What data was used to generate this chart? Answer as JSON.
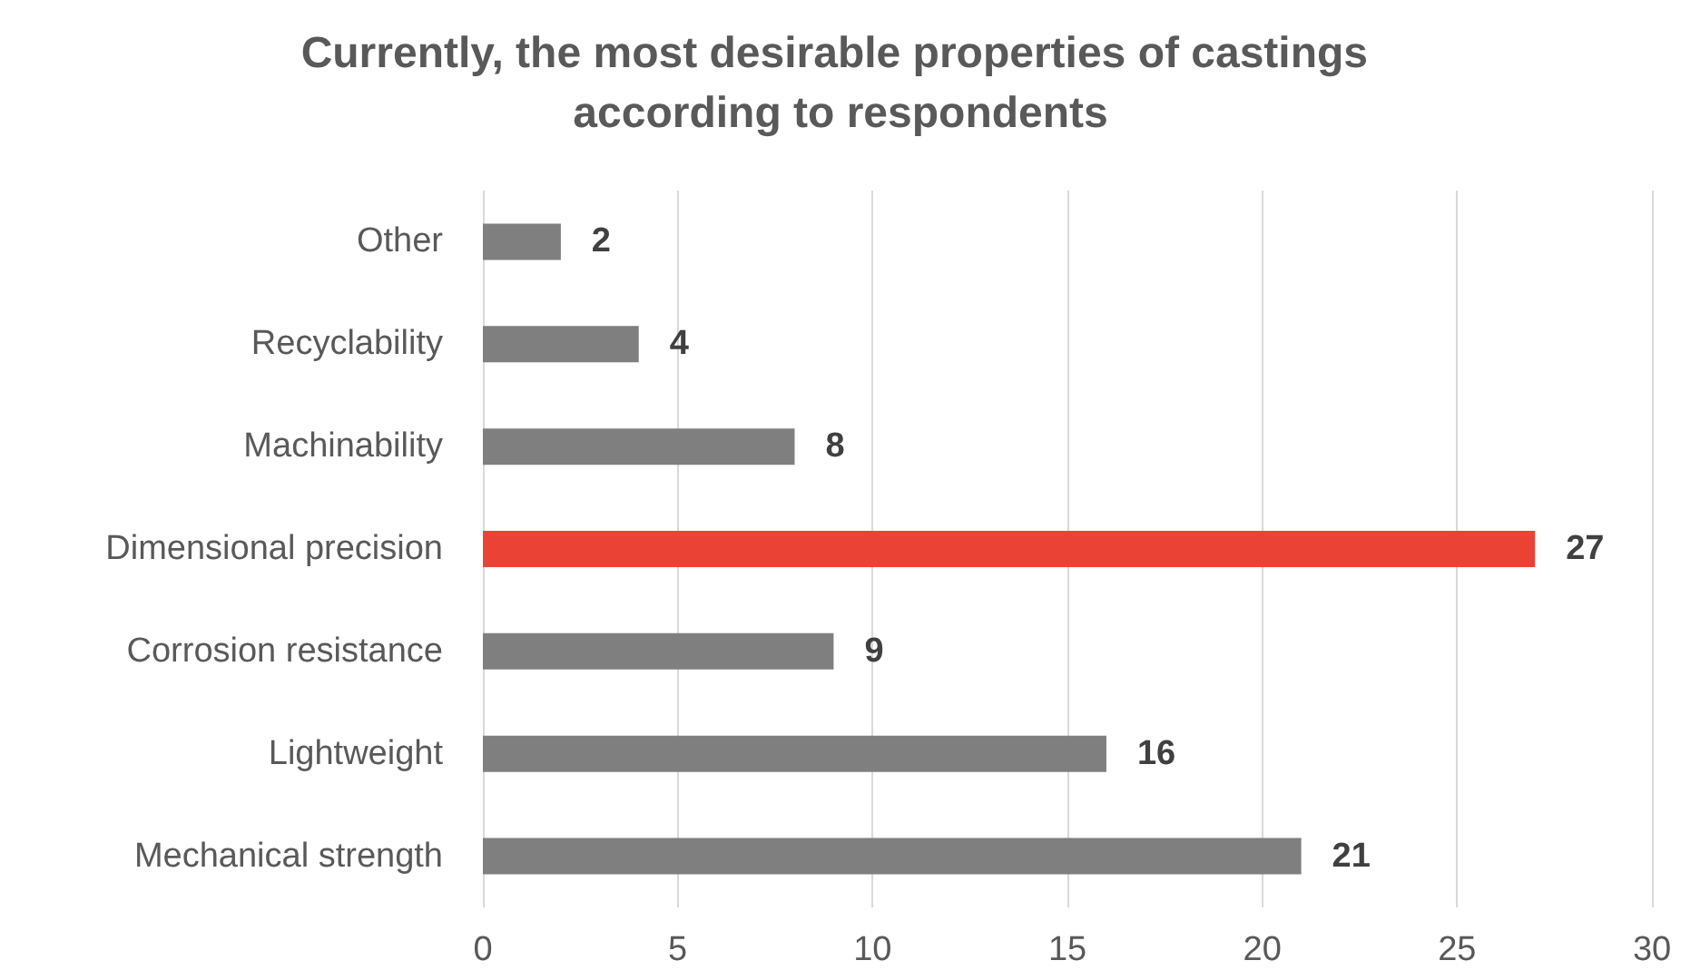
{
  "chart_data": {
    "type": "bar",
    "title": "Currently, the most desirable properties of castings according to respondents",
    "orientation": "horizontal",
    "categories": [
      "Other",
      "Recyclability",
      "Machinability",
      "Dimensional precision",
      "Corrosion resistance",
      "Lightweight",
      "Mechanical strength"
    ],
    "values": [
      2,
      4,
      8,
      27,
      9,
      16,
      21
    ],
    "colors": [
      "#7f7f7f",
      "#7f7f7f",
      "#7f7f7f",
      "#ea4335",
      "#7f7f7f",
      "#7f7f7f",
      "#7f7f7f"
    ],
    "xlim": [
      0,
      30
    ],
    "xticks": [
      0,
      5,
      10,
      15,
      20,
      25,
      30
    ],
    "grid": "x",
    "data_labels": true
  }
}
